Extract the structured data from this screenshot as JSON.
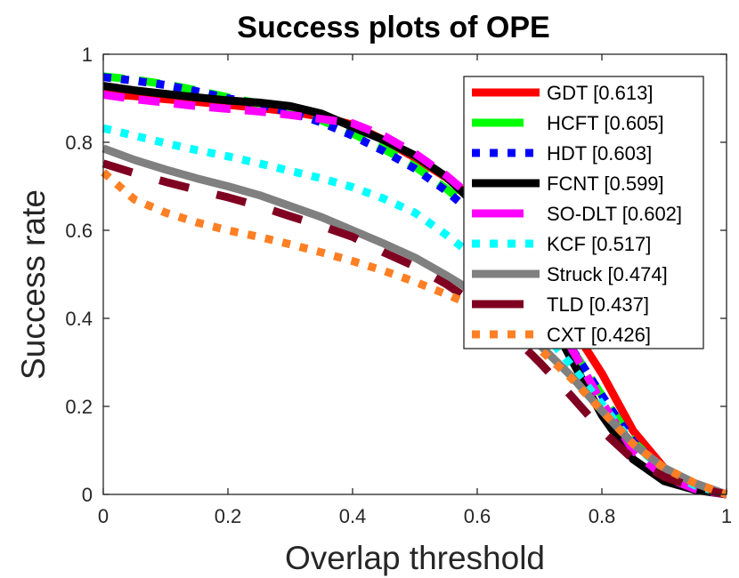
{
  "chart_data": {
    "type": "line",
    "title": "Success plots of OPE",
    "xlabel": "Overlap threshold",
    "ylabel": "Success rate",
    "xlim": [
      0,
      1
    ],
    "ylim": [
      0,
      1
    ],
    "xticks": [
      0,
      0.2,
      0.4,
      0.6,
      0.8,
      1
    ],
    "xtick_labels": [
      "0",
      "0.2",
      "0.4",
      "0.6",
      "0.8",
      "1"
    ],
    "yticks": [
      0,
      0.2,
      0.4,
      0.6,
      0.8,
      1
    ],
    "ytick_labels": [
      "0",
      "0.2",
      "0.4",
      "0.6",
      "0.8",
      "1"
    ],
    "grid": false,
    "legend_position": "top-right",
    "x": [
      0,
      0.05,
      0.1,
      0.15,
      0.2,
      0.25,
      0.3,
      0.35,
      0.4,
      0.45,
      0.5,
      0.55,
      0.6,
      0.65,
      0.7,
      0.75,
      0.8,
      0.85,
      0.9,
      0.95,
      1.0
    ],
    "series": [
      {
        "name": "GDT",
        "score": "0.613",
        "label": "GDT [0.613]",
        "color": "#ff0000",
        "style": "solid",
        "values": [
          0.91,
          0.905,
          0.898,
          0.892,
          0.885,
          0.878,
          0.87,
          0.858,
          0.84,
          0.805,
          0.765,
          0.72,
          0.665,
          0.585,
          0.485,
          0.385,
          0.275,
          0.145,
          0.06,
          0.02,
          0.0
        ]
      },
      {
        "name": "HCFT",
        "score": "0.605",
        "label": "HCFT [0.605]",
        "color": "#00ff00",
        "style": "dash",
        "values": [
          0.95,
          0.942,
          0.932,
          0.918,
          0.902,
          0.888,
          0.872,
          0.85,
          0.82,
          0.785,
          0.745,
          0.695,
          0.635,
          0.545,
          0.44,
          0.335,
          0.225,
          0.12,
          0.055,
          0.02,
          0.0
        ]
      },
      {
        "name": "HDT",
        "score": "0.603",
        "label": "HDT [0.603]",
        "color": "#0000ff",
        "style": "dot",
        "values": [
          0.948,
          0.94,
          0.93,
          0.916,
          0.9,
          0.886,
          0.868,
          0.845,
          0.815,
          0.78,
          0.74,
          0.69,
          0.63,
          0.54,
          0.44,
          0.335,
          0.225,
          0.12,
          0.055,
          0.02,
          0.0
        ]
      },
      {
        "name": "FCNT",
        "score": "0.599",
        "label": "FCNT [0.599]",
        "color": "#000000",
        "style": "solid",
        "values": [
          0.928,
          0.918,
          0.91,
          0.902,
          0.895,
          0.89,
          0.882,
          0.865,
          0.835,
          0.805,
          0.77,
          0.722,
          0.655,
          0.555,
          0.44,
          0.31,
          0.18,
          0.08,
          0.03,
          0.01,
          0.0
        ]
      },
      {
        "name": "SO-DLT",
        "score": "0.602",
        "label": "SO-DLT [0.602]",
        "color": "#ff00ff",
        "style": "dash",
        "values": [
          0.908,
          0.898,
          0.89,
          0.882,
          0.876,
          0.87,
          0.862,
          0.853,
          0.843,
          0.815,
          0.775,
          0.725,
          0.665,
          0.565,
          0.455,
          0.335,
          0.21,
          0.1,
          0.04,
          0.012,
          0.0
        ]
      },
      {
        "name": "KCF",
        "score": "0.517",
        "label": "KCF [0.517]",
        "color": "#00ffff",
        "style": "dot",
        "values": [
          0.832,
          0.815,
          0.798,
          0.782,
          0.768,
          0.752,
          0.735,
          0.718,
          0.698,
          0.672,
          0.64,
          0.59,
          0.535,
          0.46,
          0.38,
          0.295,
          0.205,
          0.115,
          0.055,
          0.02,
          0.0
        ]
      },
      {
        "name": "Struck",
        "score": "0.474",
        "label": "Struck [0.474]",
        "color": "#808080",
        "style": "solid",
        "values": [
          0.786,
          0.76,
          0.738,
          0.718,
          0.7,
          0.68,
          0.655,
          0.63,
          0.6,
          0.57,
          0.538,
          0.498,
          0.455,
          0.4,
          0.34,
          0.27,
          0.19,
          0.115,
          0.06,
          0.025,
          0.0
        ]
      },
      {
        "name": "TLD",
        "score": "0.437",
        "label": "TLD [0.437]",
        "color": "#7f0020",
        "style": "longdash",
        "values": [
          0.752,
          0.73,
          0.71,
          0.692,
          0.675,
          0.655,
          0.632,
          0.61,
          0.585,
          0.55,
          0.518,
          0.478,
          0.43,
          0.37,
          0.3,
          0.225,
          0.145,
          0.08,
          0.04,
          0.015,
          0.0
        ]
      },
      {
        "name": "CXT",
        "score": "0.426",
        "label": "CXT [0.426]",
        "color": "#ff7f24",
        "style": "dot",
        "values": [
          0.732,
          0.67,
          0.64,
          0.618,
          0.6,
          0.585,
          0.568,
          0.55,
          0.53,
          0.508,
          0.483,
          0.455,
          0.425,
          0.385,
          0.33,
          0.265,
          0.19,
          0.115,
          0.06,
          0.025,
          0.0
        ]
      }
    ]
  }
}
